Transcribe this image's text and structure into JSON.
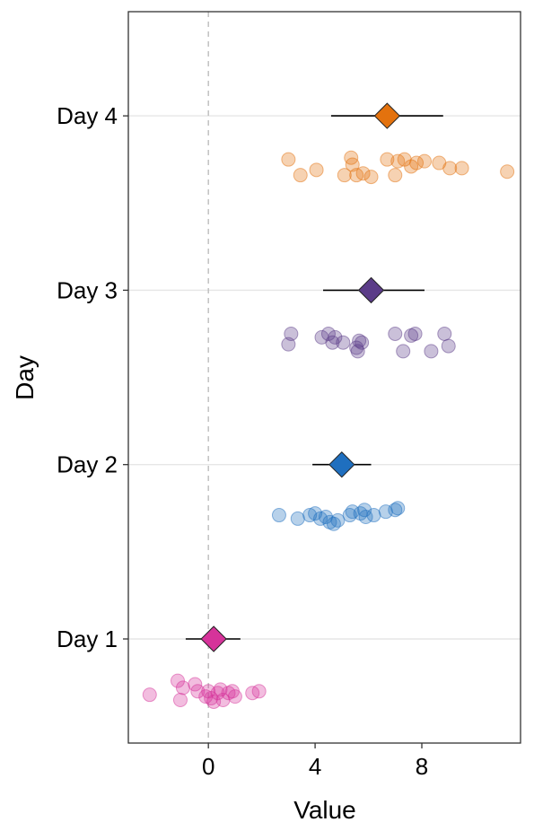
{
  "chart_data": {
    "type": "scatter",
    "xlabel": "Value",
    "ylabel": "Day",
    "xlim": [
      -3.0,
      11.7
    ],
    "x_ticks": [
      0,
      4,
      8
    ],
    "y_categories": [
      "Day 1",
      "Day 2",
      "Day 3",
      "Day 4"
    ],
    "reference_line_x": 0,
    "grid": "horizontal only at categories",
    "legend": "none",
    "series": [
      {
        "category": "Day 1",
        "color": "#d6339a",
        "mean": 0.2,
        "ci": [
          -0.85,
          1.2
        ],
        "points": [
          {
            "x": -2.2,
            "y": 0.68
          },
          {
            "x": -1.15,
            "y": 0.76
          },
          {
            "x": -1.05,
            "y": 0.65
          },
          {
            "x": -0.95,
            "y": 0.72
          },
          {
            "x": -0.5,
            "y": 0.74
          },
          {
            "x": -0.4,
            "y": 0.7
          },
          {
            "x": -0.1,
            "y": 0.67
          },
          {
            "x": 0.0,
            "y": 0.7
          },
          {
            "x": 0.1,
            "y": 0.66
          },
          {
            "x": 0.2,
            "y": 0.64
          },
          {
            "x": 0.35,
            "y": 0.69
          },
          {
            "x": 0.45,
            "y": 0.71
          },
          {
            "x": 0.55,
            "y": 0.65
          },
          {
            "x": 0.75,
            "y": 0.69
          },
          {
            "x": 0.9,
            "y": 0.7
          },
          {
            "x": 1.0,
            "y": 0.67
          },
          {
            "x": 1.65,
            "y": 0.69
          },
          {
            "x": 1.9,
            "y": 0.7
          }
        ]
      },
      {
        "category": "Day 2",
        "color": "#1f6fbf",
        "mean": 5.0,
        "ci": [
          3.9,
          6.1
        ],
        "points": [
          {
            "x": 2.65,
            "y": 1.71
          },
          {
            "x": 3.35,
            "y": 1.69
          },
          {
            "x": 3.8,
            "y": 1.71
          },
          {
            "x": 4.0,
            "y": 1.72
          },
          {
            "x": 4.2,
            "y": 1.69
          },
          {
            "x": 4.4,
            "y": 1.7
          },
          {
            "x": 4.55,
            "y": 1.67
          },
          {
            "x": 4.7,
            "y": 1.66
          },
          {
            "x": 4.85,
            "y": 1.68
          },
          {
            "x": 5.3,
            "y": 1.71
          },
          {
            "x": 5.4,
            "y": 1.73
          },
          {
            "x": 5.7,
            "y": 1.72
          },
          {
            "x": 5.85,
            "y": 1.74
          },
          {
            "x": 5.9,
            "y": 1.7
          },
          {
            "x": 6.2,
            "y": 1.71
          },
          {
            "x": 6.65,
            "y": 1.73
          },
          {
            "x": 7.0,
            "y": 1.74
          },
          {
            "x": 7.1,
            "y": 1.75
          }
        ]
      },
      {
        "category": "Day 3",
        "color": "#5b3c88",
        "mean": 6.1,
        "ci": [
          4.3,
          8.1
        ],
        "points": [
          {
            "x": 3.0,
            "y": 2.69
          },
          {
            "x": 3.1,
            "y": 2.75
          },
          {
            "x": 4.25,
            "y": 2.73
          },
          {
            "x": 4.5,
            "y": 2.75
          },
          {
            "x": 4.65,
            "y": 2.7
          },
          {
            "x": 4.75,
            "y": 2.73
          },
          {
            "x": 5.05,
            "y": 2.7
          },
          {
            "x": 5.55,
            "y": 2.67
          },
          {
            "x": 5.6,
            "y": 2.65
          },
          {
            "x": 5.65,
            "y": 2.71
          },
          {
            "x": 5.75,
            "y": 2.7
          },
          {
            "x": 7.0,
            "y": 2.75
          },
          {
            "x": 7.3,
            "y": 2.65
          },
          {
            "x": 7.6,
            "y": 2.74
          },
          {
            "x": 7.75,
            "y": 2.75
          },
          {
            "x": 8.35,
            "y": 2.65
          },
          {
            "x": 8.85,
            "y": 2.75
          },
          {
            "x": 9.0,
            "y": 2.68
          }
        ]
      },
      {
        "category": "Day 4",
        "color": "#e3720e",
        "mean": 6.7,
        "ci": [
          4.6,
          8.8
        ],
        "points": [
          {
            "x": 3.0,
            "y": 3.75
          },
          {
            "x": 3.45,
            "y": 3.66
          },
          {
            "x": 4.05,
            "y": 3.69
          },
          {
            "x": 5.1,
            "y": 3.66
          },
          {
            "x": 5.35,
            "y": 3.76
          },
          {
            "x": 5.4,
            "y": 3.72
          },
          {
            "x": 5.55,
            "y": 3.66
          },
          {
            "x": 5.8,
            "y": 3.67
          },
          {
            "x": 6.1,
            "y": 3.65
          },
          {
            "x": 6.7,
            "y": 3.75
          },
          {
            "x": 7.0,
            "y": 3.66
          },
          {
            "x": 7.1,
            "y": 3.74
          },
          {
            "x": 7.35,
            "y": 3.75
          },
          {
            "x": 7.6,
            "y": 3.71
          },
          {
            "x": 7.8,
            "y": 3.73
          },
          {
            "x": 8.1,
            "y": 3.74
          },
          {
            "x": 8.65,
            "y": 3.73
          },
          {
            "x": 9.05,
            "y": 3.7
          },
          {
            "x": 9.5,
            "y": 3.7
          },
          {
            "x": 11.2,
            "y": 3.68
          }
        ]
      }
    ]
  }
}
